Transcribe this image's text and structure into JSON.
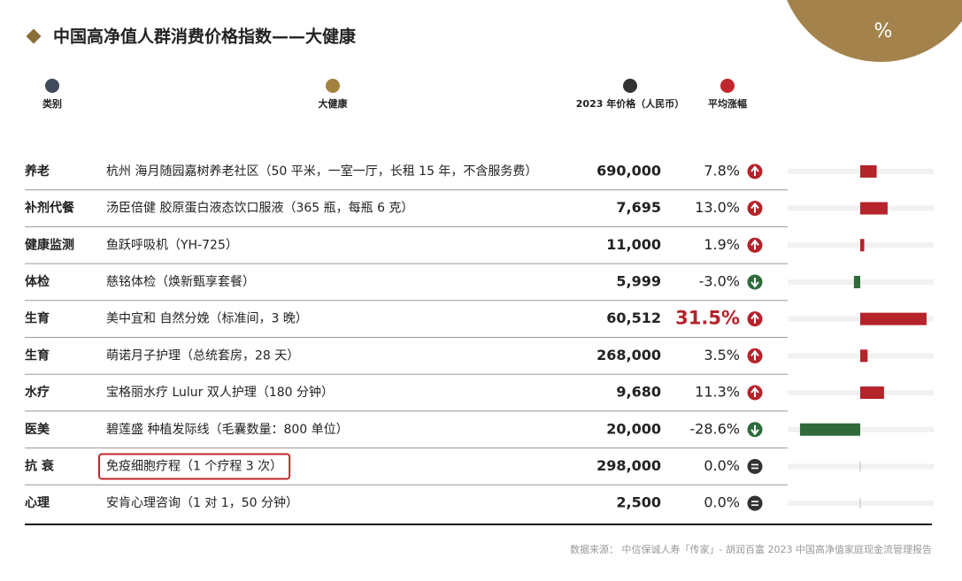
{
  "header": {
    "title": "中国高净值人群消费价格指数——大健康",
    "corner_mark": "%"
  },
  "legend": [
    {
      "label": "类别",
      "color": "#3f4b5b"
    },
    {
      "label": "大健康",
      "color": "#a3813f"
    },
    {
      "label": "2023 年价格（人民币）",
      "color": "#333333"
    },
    {
      "label": "平均涨幅",
      "color": "#c1272d"
    }
  ],
  "bar_colors": {
    "up": "#b5232b",
    "down": "#2f6b3a",
    "track": "#f1f1f1"
  },
  "table": {
    "rows": [
      {
        "category": "养老",
        "item": "杭州 海月随园嘉树养老社区（50 平米，一室一厅，长租 15 年，不含服务费）",
        "price": "690,000",
        "change": 7.8,
        "change_label": "7.8%"
      },
      {
        "category": "补剂代餐",
        "item": "汤臣倍健 胶原蛋白液态饮口服液（365 瓶，每瓶 6 克）",
        "price": "7,695",
        "change": 13.0,
        "change_label": "13.0%"
      },
      {
        "category": "健康监测",
        "item": "鱼跃呼吸机（YH-725）",
        "price": "11,000",
        "change": 1.9,
        "change_label": "1.9%"
      },
      {
        "category": "体检",
        "item": "慈铭体检（焕新甄享套餐）",
        "price": "5,999",
        "change": -3.0,
        "change_label": "-3.0%"
      },
      {
        "category": "生育",
        "item": "美中宜和 自然分娩（标准间，3 晚）",
        "price": "60,512",
        "change": 31.5,
        "change_label": "31.5%",
        "emphasized": true
      },
      {
        "category": "生育",
        "item": "萌诺月子护理（总统套房，28 天）",
        "price": "268,000",
        "change": 3.5,
        "change_label": "3.5%"
      },
      {
        "category": "水疗",
        "item": "宝格丽水疗 Lulur 双人护理（180 分钟）",
        "price": "9,680",
        "change": 11.3,
        "change_label": "11.3%"
      },
      {
        "category": "医美",
        "item": "碧莲盛 种植发际线（毛囊数量：800 单位）",
        "price": "20,000",
        "change": -28.6,
        "change_label": "-28.6%"
      },
      {
        "category": "抗 衰",
        "item": "免疫细胞疗程（1 个疗程 3 次）",
        "price": "298,000",
        "change": 0.0,
        "change_label": "0.0%",
        "highlighted": true
      },
      {
        "category": "心理",
        "item": "安肯心理咨询（1 对 1，50 分钟）",
        "price": "2,500",
        "change": 0.0,
        "change_label": "0.0%"
      }
    ]
  },
  "footnote": "数据来源： 中信保诚人寿「传家」- 胡润百富 2023 中国高净值家庭现金流管理报告"
}
